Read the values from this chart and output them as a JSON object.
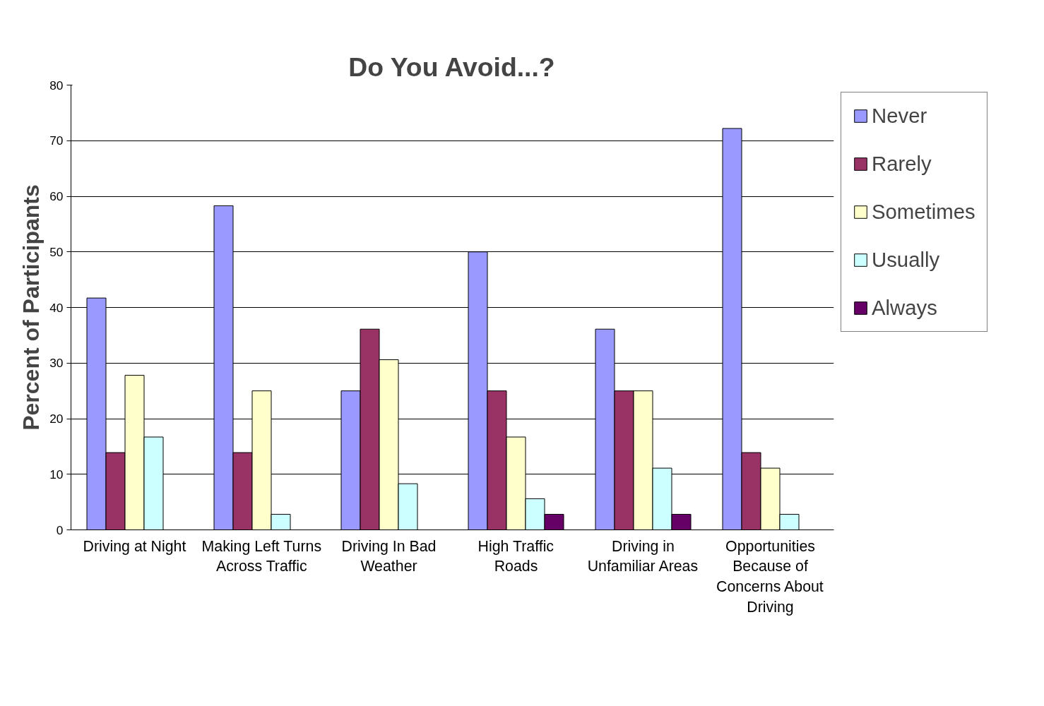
{
  "chart_data": {
    "type": "bar",
    "title": "Do You Avoid...?",
    "ylabel": "Percent of Participants",
    "categories": [
      "Driving at Night",
      "Making Left Turns Across Traffic",
      "Driving In Bad Weather",
      "High Traffic Roads",
      "Driving in Unfamiliar Areas",
      "Opportunities Because of Concerns About Driving"
    ],
    "series": [
      {
        "name": "Never",
        "color": "#9999ff",
        "values": [
          41.7,
          58.3,
          25,
          50,
          36.1,
          72.2
        ]
      },
      {
        "name": "Rarely",
        "color": "#993366",
        "values": [
          13.9,
          13.9,
          36.1,
          25,
          25,
          13.9
        ]
      },
      {
        "name": "Sometimes",
        "color": "#ffffcc",
        "values": [
          27.8,
          25,
          30.6,
          16.7,
          25,
          11.1
        ]
      },
      {
        "name": "Usually",
        "color": "#ccffff",
        "values": [
          16.7,
          2.8,
          8.3,
          5.6,
          11.1,
          2.8
        ]
      },
      {
        "name": "Always",
        "color": "#660066",
        "values": [
          null,
          null,
          null,
          2.8,
          2.8,
          null
        ]
      }
    ],
    "ylim": [
      0,
      80
    ],
    "yticks": [
      0,
      10,
      20,
      30,
      40,
      50,
      60,
      70,
      80
    ],
    "grid": "y",
    "legend": "top right"
  }
}
